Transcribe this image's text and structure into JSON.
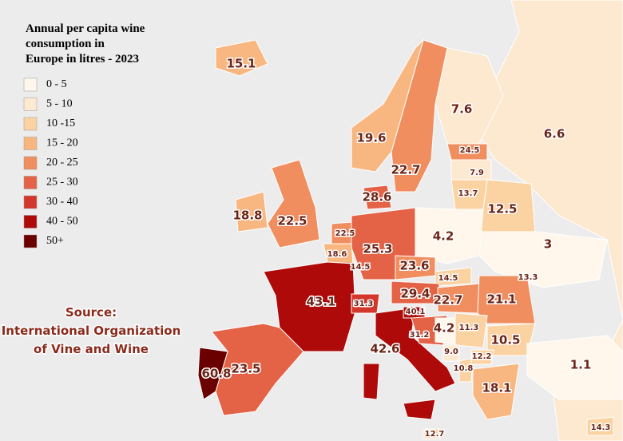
{
  "title": [
    "Annual per capita wine",
    "consumption in",
    "Europe in litres - 2023"
  ],
  "legend": [
    {
      "label": "0 - 5",
      "color": "#fff7ec"
    },
    {
      "label": "5 - 10",
      "color": "#fde8d0"
    },
    {
      "label": "10 -15",
      "color": "#fbd3a2"
    },
    {
      "label": "15 - 20",
      "color": "#f8b781"
    },
    {
      "label": "20 - 25",
      "color": "#f08e5f"
    },
    {
      "label": "25 - 30",
      "color": "#e46246"
    },
    {
      "label": "30 - 40",
      "color": "#d3362a"
    },
    {
      "label": "40 - 50",
      "color": "#ae0a0a"
    },
    {
      "label": "50+",
      "color": "#6b0000"
    }
  ],
  "source": [
    "Source:",
    "International Organization",
    "of Vine and Wine"
  ],
  "labels": [
    "15.1",
    "7.6",
    "6.6",
    "19.6",
    "24.5",
    "22.7",
    "7.9",
    "28.6",
    "13.7",
    "12.5",
    "18.8",
    "22.5",
    "22.5",
    "4.2",
    "3",
    "18.6",
    "25.3",
    "14.5",
    "23.6",
    "14.5",
    "13.3",
    "43.1",
    "31.3",
    "29.4",
    "22.7",
    "21.1",
    "40.1",
    "4.2",
    "11.3",
    "31.2",
    "10.5",
    "42.6",
    "9.0",
    "12.2",
    "1.1",
    "10.8",
    "23.5",
    "60.8",
    "18.1",
    "14.3",
    "12.7"
  ]
}
